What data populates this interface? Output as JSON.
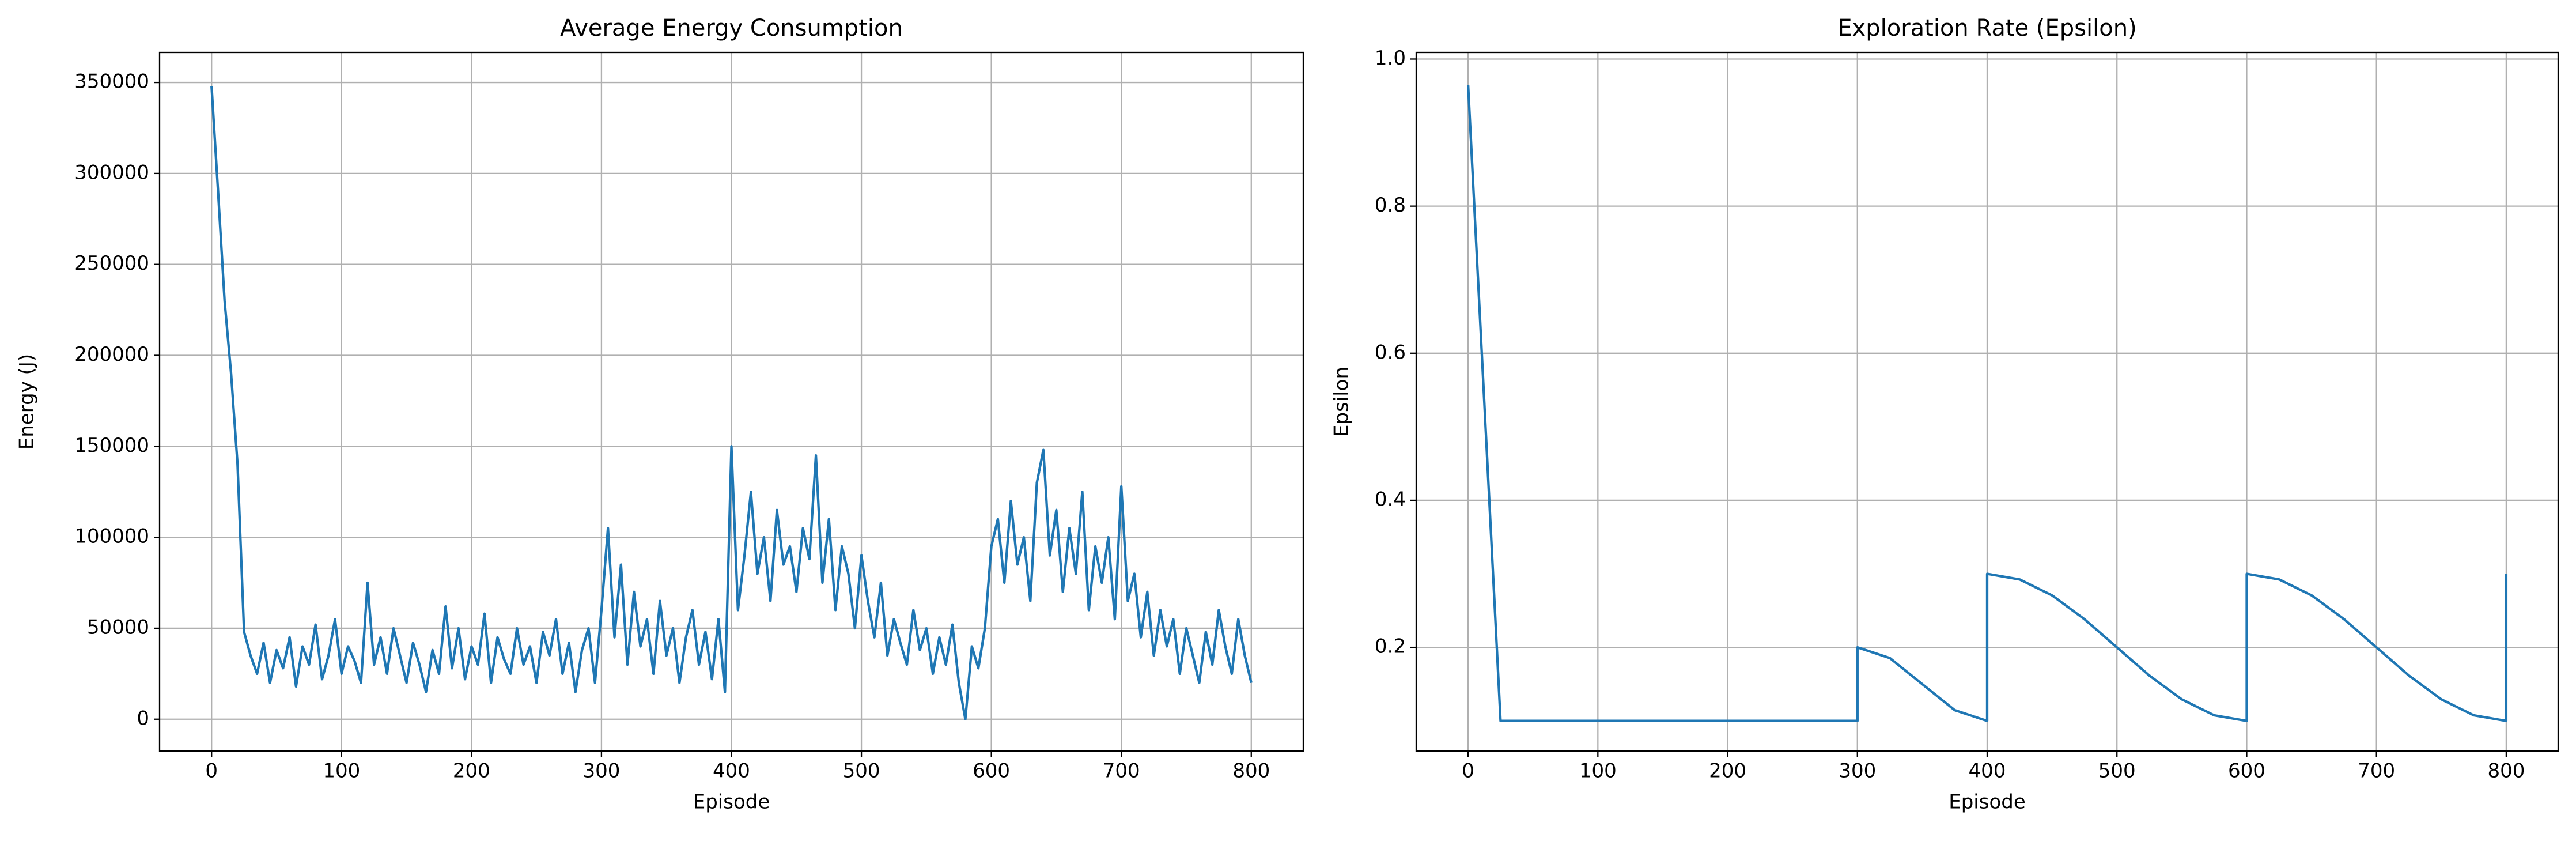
{
  "chart_data": [
    {
      "type": "line",
      "title": "Average Energy Consumption",
      "xlabel": "Episode",
      "ylabel": "Energy (J)",
      "color": "#1f77b4",
      "grid": true,
      "x": [
        0,
        5,
        10,
        15,
        20,
        25,
        30,
        35,
        40,
        45,
        50,
        55,
        60,
        65,
        70,
        75,
        80,
        85,
        90,
        95,
        100,
        105,
        110,
        115,
        120,
        125,
        130,
        135,
        140,
        145,
        150,
        155,
        160,
        165,
        170,
        175,
        180,
        185,
        190,
        195,
        200,
        205,
        210,
        215,
        220,
        225,
        230,
        235,
        240,
        245,
        250,
        255,
        260,
        265,
        270,
        275,
        280,
        285,
        290,
        295,
        300,
        305,
        310,
        315,
        320,
        325,
        330,
        335,
        340,
        345,
        350,
        355,
        360,
        365,
        370,
        375,
        380,
        385,
        390,
        395,
        400,
        405,
        410,
        415,
        420,
        425,
        430,
        435,
        440,
        445,
        450,
        455,
        460,
        465,
        470,
        475,
        480,
        485,
        490,
        495,
        500,
        505,
        510,
        515,
        520,
        525,
        530,
        535,
        540,
        545,
        550,
        555,
        560,
        565,
        570,
        575,
        580,
        585,
        590,
        595,
        600,
        605,
        610,
        615,
        620,
        625,
        630,
        635,
        640,
        645,
        650,
        655,
        660,
        665,
        670,
        675,
        680,
        685,
        690,
        695,
        700,
        705,
        710,
        715,
        720,
        725,
        730,
        735,
        740,
        745,
        750,
        755,
        760,
        765,
        770,
        775,
        780,
        785,
        790,
        795,
        800
      ],
      "values": [
        348000,
        290000,
        230000,
        190000,
        140000,
        48000,
        35000,
        25000,
        42000,
        20000,
        38000,
        28000,
        45000,
        18000,
        40000,
        30000,
        52000,
        22000,
        35000,
        55000,
        25000,
        40000,
        32000,
        20000,
        75000,
        30000,
        45000,
        25000,
        50000,
        35000,
        20000,
        42000,
        30000,
        15000,
        38000,
        25000,
        62000,
        28000,
        50000,
        22000,
        40000,
        30000,
        58000,
        20000,
        45000,
        33000,
        25000,
        50000,
        30000,
        40000,
        20000,
        48000,
        35000,
        55000,
        25000,
        42000,
        15000,
        38000,
        50000,
        20000,
        60000,
        105000,
        45000,
        85000,
        30000,
        70000,
        40000,
        55000,
        25000,
        65000,
        35000,
        50000,
        20000,
        45000,
        60000,
        30000,
        48000,
        22000,
        55000,
        15000,
        150000,
        60000,
        90000,
        125000,
        80000,
        100000,
        65000,
        115000,
        85000,
        95000,
        70000,
        105000,
        88000,
        145000,
        75000,
        110000,
        60000,
        95000,
        80000,
        50000,
        90000,
        65000,
        45000,
        75000,
        35000,
        55000,
        42000,
        30000,
        60000,
        38000,
        50000,
        25000,
        45000,
        30000,
        52000,
        20000,
        0,
        40000,
        28000,
        50000,
        95000,
        110000,
        75000,
        120000,
        85000,
        100000,
        65000,
        130000,
        148000,
        90000,
        115000,
        70000,
        105000,
        80000,
        125000,
        60000,
        95000,
        75000,
        100000,
        55000,
        128000,
        65000,
        80000,
        45000,
        70000,
        35000,
        60000,
        40000,
        55000,
        25000,
        50000,
        35000,
        20000,
        48000,
        30000,
        60000,
        40000,
        25000,
        55000,
        35000,
        20000
      ],
      "xlim": [
        -40,
        840
      ],
      "xticks": [
        0,
        100,
        200,
        300,
        400,
        500,
        600,
        700,
        800
      ],
      "ylim": [
        -17500,
        366500
      ],
      "yticks": [
        0,
        50000,
        100000,
        150000,
        200000,
        250000,
        300000,
        350000
      ]
    },
    {
      "type": "line",
      "title": "Exploration Rate (Epsilon)",
      "xlabel": "Episode",
      "ylabel": "Epsilon",
      "color": "#1f77b4",
      "grid": true,
      "x": [
        0,
        25,
        300,
        300,
        325,
        350,
        375,
        400,
        400,
        425,
        450,
        475,
        500,
        525,
        550,
        575,
        600,
        600,
        625,
        650,
        675,
        700,
        725,
        750,
        775,
        800,
        800
      ],
      "values": [
        0.965,
        0.1,
        0.1,
        0.2,
        0.1854,
        0.15,
        0.1146,
        0.1,
        0.3,
        0.2924,
        0.2707,
        0.2383,
        0.2,
        0.1617,
        0.1293,
        0.1076,
        0.1,
        0.3,
        0.2924,
        0.2707,
        0.2383,
        0.2,
        0.1617,
        0.1293,
        0.1076,
        0.1,
        0.3
      ],
      "xlim": [
        -40,
        840
      ],
      "xticks": [
        0,
        100,
        200,
        300,
        400,
        500,
        600,
        700,
        800
      ],
      "ylim": [
        0.059,
        1.009
      ],
      "yticks": [
        0.2,
        0.4,
        0.6,
        0.8,
        {
          "value": 1,
          "label": "1.0"
        }
      ]
    }
  ]
}
